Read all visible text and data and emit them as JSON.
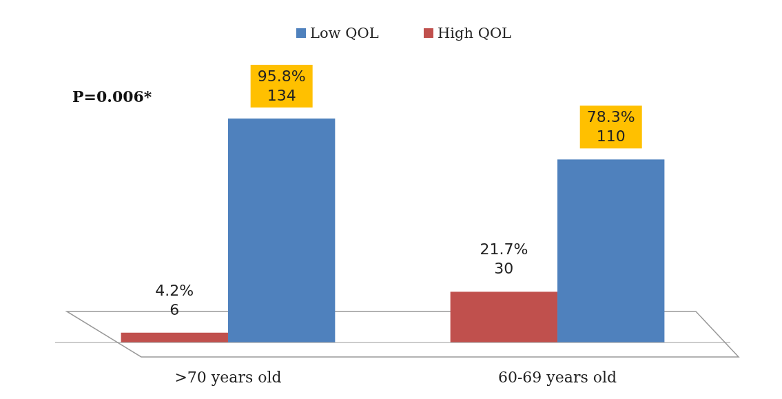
{
  "chart_data": {
    "type": "bar",
    "categories": [
      ">70 years old",
      "60-69 years old"
    ],
    "series": [
      {
        "name": "High QOL",
        "color": "#c0504d",
        "values": [
          4.2,
          21.7
        ],
        "value_labels": [
          "4.2%\n6",
          "21.7%\n30"
        ]
      },
      {
        "name": "Low QOL",
        "color": "#4f81bd",
        "values": [
          95.8,
          78.3
        ],
        "value_labels": [
          "95.8%\n134",
          "78.3%\n110"
        ]
      }
    ],
    "legend": "top",
    "annotations": [
      "P=0.006*"
    ]
  }
}
